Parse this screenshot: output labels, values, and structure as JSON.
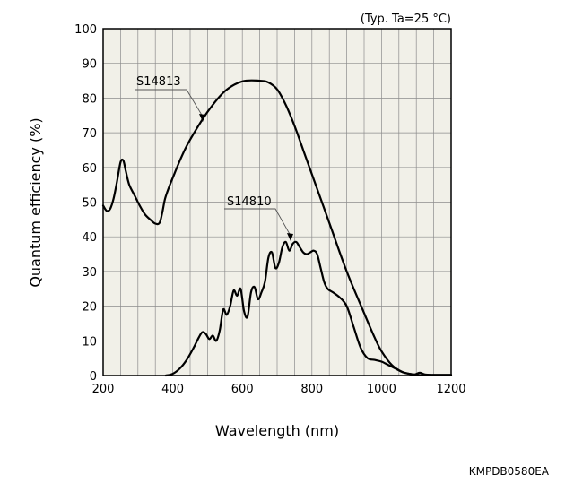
{
  "chart_data": {
    "type": "line",
    "condition_note": "(Typ. Ta=25 °C)",
    "xlabel": "Wavelength (nm)",
    "ylabel": "Quantum efficiency (%)",
    "xlim": [
      200,
      1200
    ],
    "ylim": [
      0,
      100
    ],
    "x_ticks": [
      200,
      400,
      600,
      800,
      1000,
      1200
    ],
    "y_ticks": [
      0,
      10,
      20,
      30,
      40,
      50,
      60,
      70,
      80,
      90,
      100
    ],
    "grid": true,
    "plot_background": "#f1f0e8",
    "line_color": "#000000",
    "series": [
      {
        "name": "S14813",
        "x": [
          200,
          210,
          220,
          230,
          240,
          250,
          258,
          265,
          275,
          290,
          305,
          320,
          335,
          350,
          362,
          370,
          378,
          390,
          400,
          425,
          450,
          500,
          550,
          600,
          650,
          675,
          700,
          725,
          750,
          775,
          800,
          850,
          900,
          950,
          980,
          1000,
          1030,
          1060,
          1080,
          1095,
          1110,
          1125,
          1150,
          1200
        ],
        "y": [
          49,
          47.5,
          48,
          51,
          56,
          61.5,
          62,
          59,
          55,
          52,
          49,
          46.5,
          45,
          43.8,
          44,
          47,
          51,
          54.5,
          57,
          63,
          68,
          76,
          82,
          84.8,
          85,
          84.5,
          82.5,
          78,
          72,
          65,
          58,
          44,
          30,
          18,
          11,
          7,
          3,
          1,
          0.5,
          0.3,
          0.8,
          0.3,
          0.2,
          0.2
        ]
      },
      {
        "name": "S14810",
        "x": [
          380,
          400,
          420,
          440,
          460,
          475,
          485,
          495,
          505,
          515,
          525,
          535,
          545,
          555,
          565,
          575,
          585,
          595,
          605,
          615,
          625,
          635,
          645,
          655,
          665,
          675,
          685,
          695,
          705,
          715,
          725,
          735,
          745,
          755,
          765,
          775,
          785,
          795,
          805,
          815,
          825,
          835,
          845,
          860,
          880,
          900,
          920,
          940,
          960,
          980,
          1000,
          1020,
          1040,
          1060,
          1080,
          1100,
          1120,
          1200
        ],
        "y": [
          0,
          0.5,
          2,
          4.5,
          8,
          11,
          12.5,
          12,
          10.5,
          11.5,
          10,
          13,
          19,
          17.5,
          20,
          24.5,
          23,
          25,
          18.5,
          17,
          24,
          25.5,
          22,
          24,
          27,
          34,
          35.5,
          31,
          32.5,
          37,
          38.5,
          36,
          38,
          38.5,
          37,
          35.5,
          35,
          35.5,
          36,
          35,
          31,
          27,
          25,
          24,
          22.5,
          20,
          14,
          8,
          5,
          4.5,
          4,
          3,
          2,
          1,
          0.5,
          0.2,
          0.1,
          0.1
        ]
      }
    ]
  },
  "footer_code": "KMPDB0580EA"
}
